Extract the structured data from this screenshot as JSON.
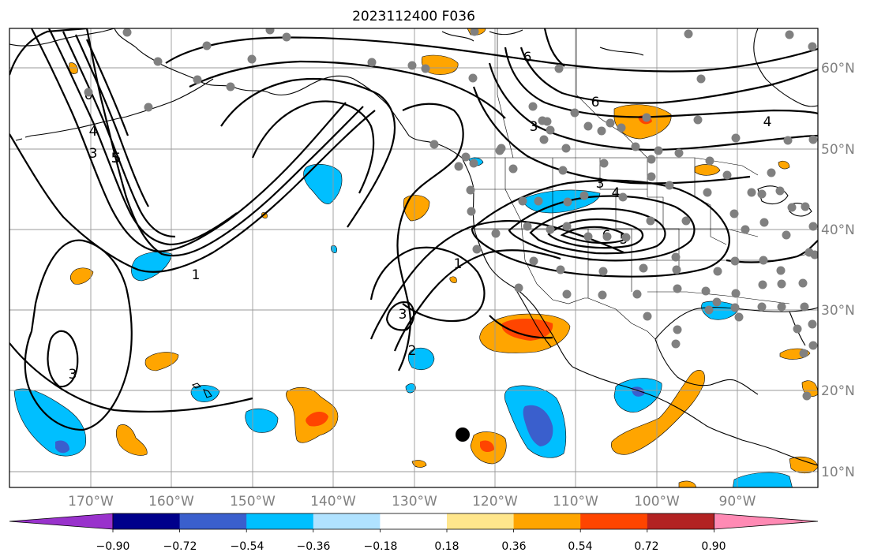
{
  "title": "2023112400 F036",
  "map": {
    "lon_ticks": [
      "170°W",
      "160°W",
      "150°W",
      "140°W",
      "130°W",
      "120°W",
      "110°W",
      "100°W",
      "90°W"
    ],
    "lat_ticks": [
      "60°N",
      "50°N",
      "40°N",
      "30°N",
      "20°N",
      "10°N"
    ],
    "extent": {
      "lon": [
        -180,
        -80
      ],
      "lat": [
        8,
        65
      ]
    },
    "grid": true,
    "contour_labels": [
      "6",
      "5",
      "4",
      "3",
      "5",
      "1",
      "2",
      "3",
      "3",
      "6",
      "3",
      "6",
      "4",
      "3",
      "4",
      "6",
      "5",
      "3",
      "4",
      "1"
    ],
    "station_marker": "black-dot"
  },
  "colorbar": {
    "ticks": [
      "−0.90",
      "−0.72",
      "−0.54",
      "−0.36",
      "−0.18",
      "0.18",
      "0.36",
      "0.54",
      "0.72",
      "0.90"
    ],
    "colors": [
      "#9932cc",
      "#00008b",
      "#3a5fcd",
      "#00bfff",
      "#b0e2ff",
      "#ffffff",
      "#ffe68c",
      "#ffa500",
      "#ff4500",
      "#b22222",
      "#ff8ab4"
    ],
    "extend": "both"
  }
}
